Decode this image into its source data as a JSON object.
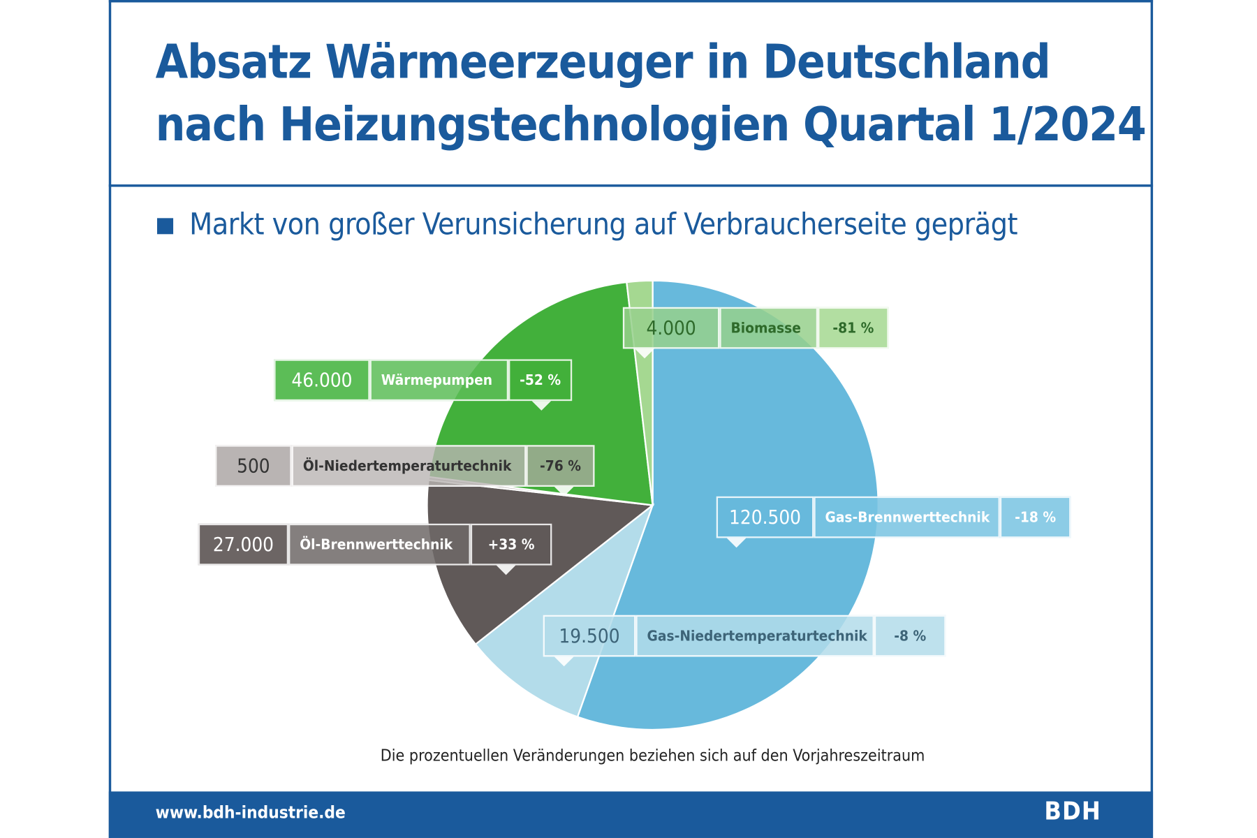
{
  "header": {
    "title_line1": "Absatz Wärmeerzeuger in Deutschland",
    "title_line2": "nach Heizungstechnologien Quartal 1/2024",
    "subtitle": "Markt von großer Verunsicherung auf Verbraucherseite geprägt"
  },
  "chart_data": {
    "type": "pie",
    "title": "Absatz Wärmeerzeuger in Deutschland nach Heizungstechnologien Quartal 1/2024",
    "categories": [
      "Gas-Brennwerttechnik",
      "Gas-Niedertemperaturtechnik",
      "Öl-Brennwerttechnik",
      "Öl-Niedertemperaturtechnik",
      "Wärmepumpen",
      "Biomasse"
    ],
    "values": [
      120500,
      19500,
      27000,
      500,
      46000,
      4000
    ],
    "value_labels": [
      "120.500",
      "19.500",
      "27.000",
      "500",
      "46.000",
      "4.000"
    ],
    "change_labels": [
      "-18 %",
      "-8 %",
      "+33 %",
      "-76 %",
      "-52 %",
      "-81 %"
    ],
    "colors": [
      "#67b9dc",
      "#b3dcea",
      "#605958",
      "#b9b4b3",
      "#42b03b",
      "#a5d891"
    ],
    "start": "top",
    "direction": "clockwise",
    "note": "Die prozentuellen Veränderungen beziehen sich auf den Vorjahreszeitraum"
  },
  "footer": {
    "url": "www.bdh-industrie.de",
    "logo": "BDH"
  }
}
